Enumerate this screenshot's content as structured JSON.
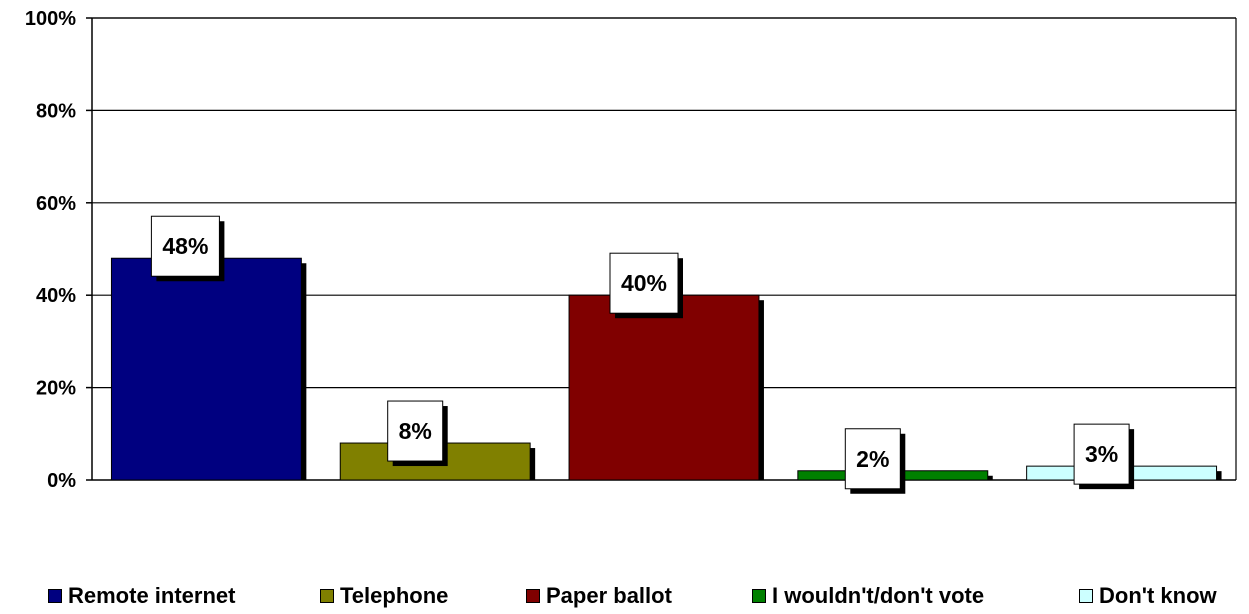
{
  "chart_data": {
    "type": "bar",
    "categories": [
      "Remote internet",
      "Telephone",
      "Paper ballot",
      "I wouldn't/don't vote",
      "Don't know"
    ],
    "values": [
      48,
      8,
      40,
      2,
      3
    ],
    "data_labels": [
      "48%",
      "8%",
      "40%",
      "2%",
      "3%"
    ],
    "colors": [
      "#000080",
      "#808000",
      "#800000",
      "#008000",
      "#ccffff"
    ],
    "ylim": [
      0,
      100
    ],
    "yticks": [
      0,
      20,
      40,
      60,
      80,
      100
    ],
    "ytick_labels": [
      "0%",
      "20%",
      "40%",
      "60%",
      "80%",
      "100%"
    ],
    "grid": true,
    "legend_position": "bottom",
    "title": "",
    "xlabel": "",
    "ylabel": ""
  }
}
